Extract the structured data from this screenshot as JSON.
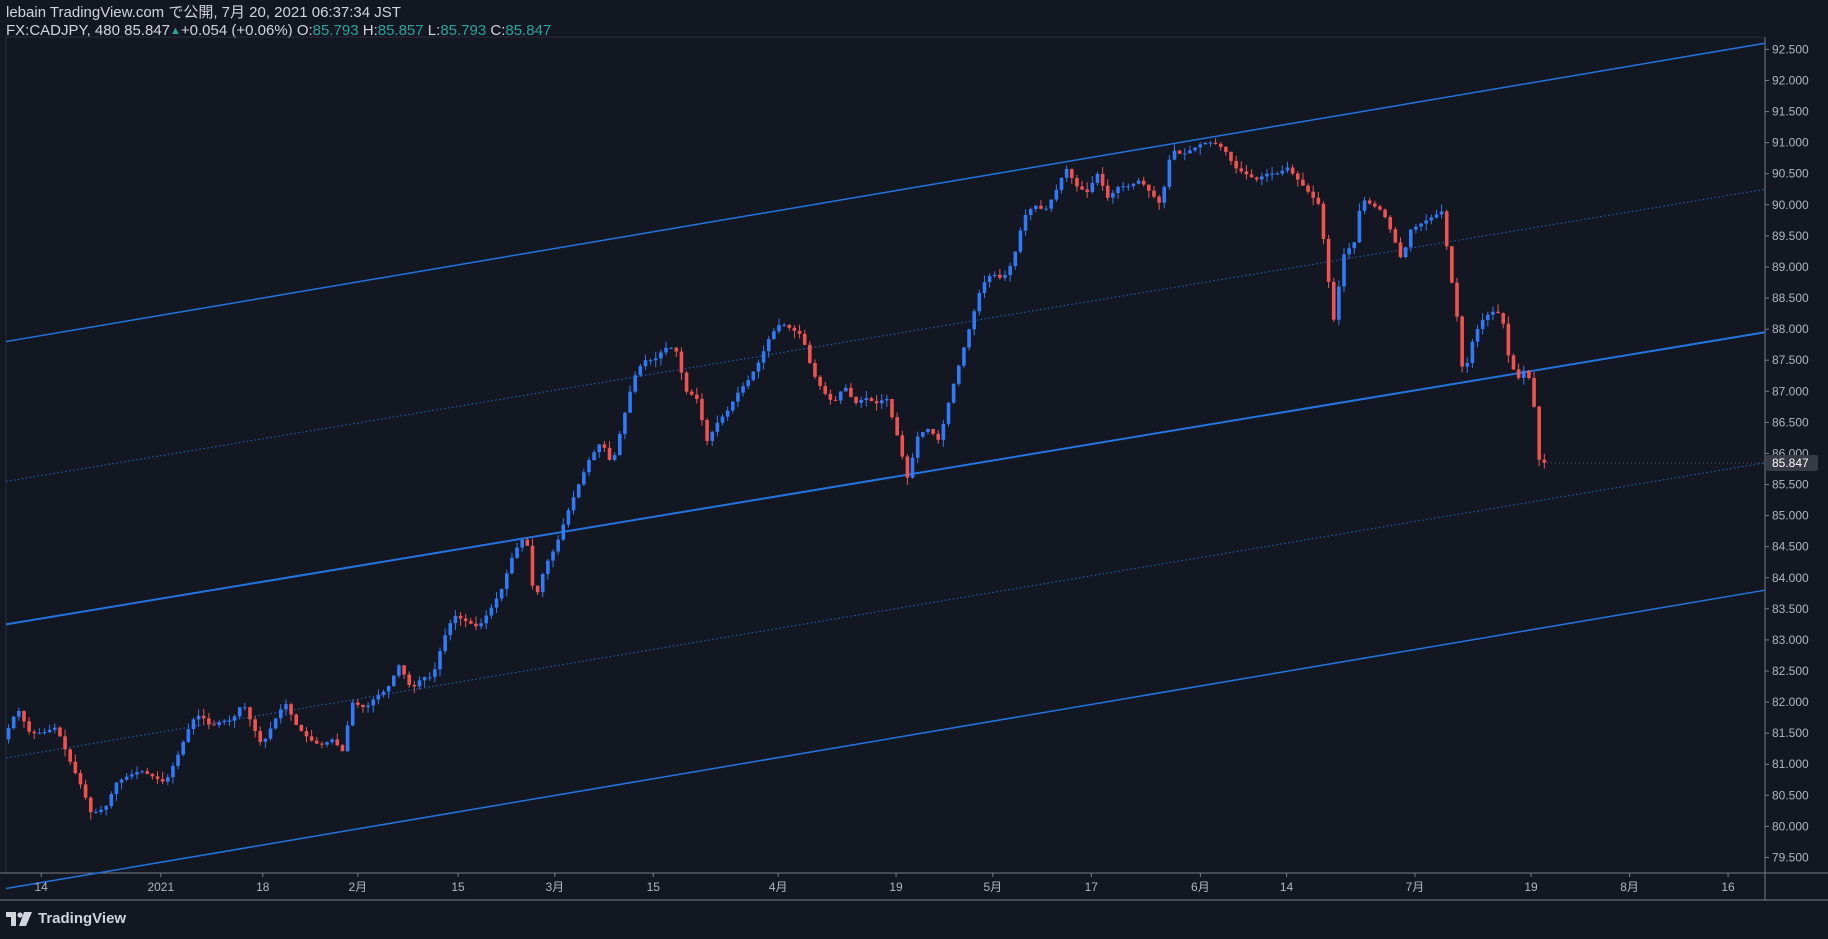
{
  "header": {
    "line1": "lebain TradingView.com で公開, 7月 20, 2021 06:37:34 JST",
    "symbol": "FX:CADJPY, 480",
    "last": "85.847",
    "change": "+0.054 (+0.06%)",
    "o_label": "O:",
    "o_val": "85.793",
    "h_label": "H:",
    "h_val": "85.857",
    "l_label": "L:",
    "l_val": "85.793",
    "c_label": "C:",
    "c_val": "85.847"
  },
  "footer": {
    "brand": "TradingView"
  },
  "colors": {
    "background": "#131722",
    "up": "#2962ff",
    "up_line": "#3179f5",
    "down": "#ef5350",
    "channel": "#2374e1",
    "grid_text": "#b2b5be",
    "axis_line": "#787b86",
    "last_tag_bg": "#363a45"
  },
  "chart_data": {
    "type": "candlestick",
    "y_axis": {
      "min": 79.25,
      "max": 92.7,
      "tick_step": 0.5,
      "ticks": [
        "79.500",
        "80.000",
        "80.500",
        "81.000",
        "81.500",
        "82.000",
        "82.500",
        "83.000",
        "83.500",
        "84.000",
        "84.500",
        "85.000",
        "85.500",
        "86.000",
        "86.500",
        "87.000",
        "87.500",
        "88.000",
        "88.500",
        "89.000",
        "89.500",
        "90.000",
        "90.500",
        "91.000",
        "91.500",
        "92.000",
        "92.500"
      ],
      "last_price_label": "85.847"
    },
    "x_axis": {
      "labels": [
        {
          "text": "14",
          "x": 0.02
        },
        {
          "text": "2021",
          "x": 0.088
        },
        {
          "text": "18",
          "x": 0.146
        },
        {
          "text": "2月",
          "x": 0.2
        },
        {
          "text": "15",
          "x": 0.257
        },
        {
          "text": "3月",
          "x": 0.312
        },
        {
          "text": "15",
          "x": 0.368
        },
        {
          "text": "4月",
          "x": 0.439
        },
        {
          "text": "19",
          "x": 0.506
        },
        {
          "text": "5月",
          "x": 0.561
        },
        {
          "text": "17",
          "x": 0.617
        },
        {
          "text": "6月",
          "x": 0.679
        },
        {
          "text": "14",
          "x": 0.728
        },
        {
          "text": "7月",
          "x": 0.801
        },
        {
          "text": "19",
          "x": 0.867
        },
        {
          "text": "8月",
          "x": 0.923
        },
        {
          "text": "16",
          "x": 0.979
        }
      ]
    },
    "price_path": [
      [
        0.0,
        81.4
      ],
      [
        0.008,
        81.9
      ],
      [
        0.015,
        81.5
      ],
      [
        0.022,
        81.5
      ],
      [
        0.03,
        81.6
      ],
      [
        0.037,
        81.1
      ],
      [
        0.045,
        80.6
      ],
      [
        0.05,
        80.2
      ],
      [
        0.058,
        80.3
      ],
      [
        0.064,
        80.7
      ],
      [
        0.07,
        80.8
      ],
      [
        0.078,
        80.9
      ],
      [
        0.085,
        80.8
      ],
      [
        0.092,
        80.7
      ],
      [
        0.1,
        81.2
      ],
      [
        0.107,
        81.7
      ],
      [
        0.112,
        81.8
      ],
      [
        0.118,
        81.6
      ],
      [
        0.124,
        81.7
      ],
      [
        0.13,
        81.7
      ],
      [
        0.136,
        82.0
      ],
      [
        0.142,
        81.6
      ],
      [
        0.147,
        81.3
      ],
      [
        0.154,
        81.7
      ],
      [
        0.16,
        82.0
      ],
      [
        0.167,
        81.6
      ],
      [
        0.174,
        81.4
      ],
      [
        0.18,
        81.3
      ],
      [
        0.187,
        81.4
      ],
      [
        0.193,
        81.2
      ],
      [
        0.198,
        82.0
      ],
      [
        0.206,
        81.9
      ],
      [
        0.212,
        82.1
      ],
      [
        0.218,
        82.2
      ],
      [
        0.225,
        82.6
      ],
      [
        0.232,
        82.2
      ],
      [
        0.238,
        82.4
      ],
      [
        0.244,
        82.4
      ],
      [
        0.25,
        83.0
      ],
      [
        0.256,
        83.4
      ],
      [
        0.263,
        83.3
      ],
      [
        0.27,
        83.2
      ],
      [
        0.277,
        83.5
      ],
      [
        0.283,
        83.8
      ],
      [
        0.29,
        84.4
      ],
      [
        0.297,
        84.7
      ],
      [
        0.302,
        83.6
      ],
      [
        0.308,
        84.2
      ],
      [
        0.314,
        84.5
      ],
      [
        0.32,
        85.0
      ],
      [
        0.327,
        85.5
      ],
      [
        0.333,
        85.9
      ],
      [
        0.34,
        86.2
      ],
      [
        0.346,
        85.8
      ],
      [
        0.352,
        86.5
      ],
      [
        0.358,
        87.2
      ],
      [
        0.364,
        87.5
      ],
      [
        0.37,
        87.5
      ],
      [
        0.376,
        87.7
      ],
      [
        0.382,
        87.7
      ],
      [
        0.388,
        87.0
      ],
      [
        0.394,
        86.9
      ],
      [
        0.4,
        86.2
      ],
      [
        0.406,
        86.5
      ],
      [
        0.412,
        86.7
      ],
      [
        0.418,
        87.0
      ],
      [
        0.424,
        87.2
      ],
      [
        0.43,
        87.5
      ],
      [
        0.436,
        87.9
      ],
      [
        0.442,
        88.1
      ],
      [
        0.448,
        88.0
      ],
      [
        0.454,
        87.9
      ],
      [
        0.46,
        87.3
      ],
      [
        0.466,
        87.0
      ],
      [
        0.472,
        86.8
      ],
      [
        0.478,
        87.1
      ],
      [
        0.484,
        86.8
      ],
      [
        0.49,
        86.9
      ],
      [
        0.496,
        86.8
      ],
      [
        0.502,
        86.9
      ],
      [
        0.508,
        86.3
      ],
      [
        0.514,
        85.6
      ],
      [
        0.52,
        86.3
      ],
      [
        0.526,
        86.4
      ],
      [
        0.532,
        86.2
      ],
      [
        0.538,
        86.9
      ],
      [
        0.544,
        87.5
      ],
      [
        0.55,
        88.1
      ],
      [
        0.556,
        88.7
      ],
      [
        0.562,
        88.9
      ],
      [
        0.568,
        88.8
      ],
      [
        0.574,
        89.1
      ],
      [
        0.58,
        89.8
      ],
      [
        0.586,
        90.0
      ],
      [
        0.592,
        89.9
      ],
      [
        0.598,
        90.2
      ],
      [
        0.604,
        90.6
      ],
      [
        0.61,
        90.3
      ],
      [
        0.616,
        90.2
      ],
      [
        0.622,
        90.5
      ],
      [
        0.628,
        90.1
      ],
      [
        0.634,
        90.3
      ],
      [
        0.64,
        90.3
      ],
      [
        0.646,
        90.4
      ],
      [
        0.652,
        90.2
      ],
      [
        0.658,
        90.0
      ],
      [
        0.664,
        90.9
      ],
      [
        0.67,
        90.8
      ],
      [
        0.676,
        90.9
      ],
      [
        0.682,
        91.0
      ],
      [
        0.688,
        91.0
      ],
      [
        0.694,
        90.9
      ],
      [
        0.7,
        90.6
      ],
      [
        0.706,
        90.5
      ],
      [
        0.712,
        90.4
      ],
      [
        0.718,
        90.5
      ],
      [
        0.724,
        90.5
      ],
      [
        0.73,
        90.6
      ],
      [
        0.736,
        90.4
      ],
      [
        0.742,
        90.2
      ],
      [
        0.748,
        90.0
      ],
      [
        0.752,
        89.1
      ],
      [
        0.756,
        88.1
      ],
      [
        0.762,
        89.2
      ],
      [
        0.768,
        89.4
      ],
      [
        0.772,
        90.1
      ],
      [
        0.778,
        90.0
      ],
      [
        0.784,
        89.9
      ],
      [
        0.79,
        89.5
      ],
      [
        0.795,
        89.1
      ],
      [
        0.8,
        89.6
      ],
      [
        0.806,
        89.7
      ],
      [
        0.812,
        89.8
      ],
      [
        0.818,
        89.9
      ],
      [
        0.822,
        89.0
      ],
      [
        0.826,
        88.3
      ],
      [
        0.83,
        87.2
      ],
      [
        0.836,
        87.9
      ],
      [
        0.842,
        88.2
      ],
      [
        0.848,
        88.3
      ],
      [
        0.852,
        88.2
      ],
      [
        0.856,
        87.5
      ],
      [
        0.861,
        87.2
      ],
      [
        0.866,
        87.4
      ],
      [
        0.87,
        86.8
      ],
      [
        0.873,
        85.9
      ],
      [
        0.876,
        85.85
      ]
    ],
    "channel_lines": [
      {
        "style": "solid",
        "width": 1.5,
        "start": [
          0.0,
          87.8
        ],
        "end": [
          1.0,
          92.6
        ]
      },
      {
        "style": "dotted",
        "width": 1,
        "start": [
          0.0,
          85.55
        ],
        "end": [
          1.0,
          90.25
        ]
      },
      {
        "style": "solid",
        "width": 2,
        "start": [
          0.0,
          83.25
        ],
        "end": [
          1.0,
          87.95
        ]
      },
      {
        "style": "dotted",
        "width": 1,
        "start": [
          0.0,
          81.1
        ],
        "end": [
          1.0,
          85.85
        ]
      },
      {
        "style": "solid",
        "width": 1.5,
        "start": [
          0.0,
          79.0
        ],
        "end": [
          1.0,
          83.8
        ]
      }
    ]
  }
}
